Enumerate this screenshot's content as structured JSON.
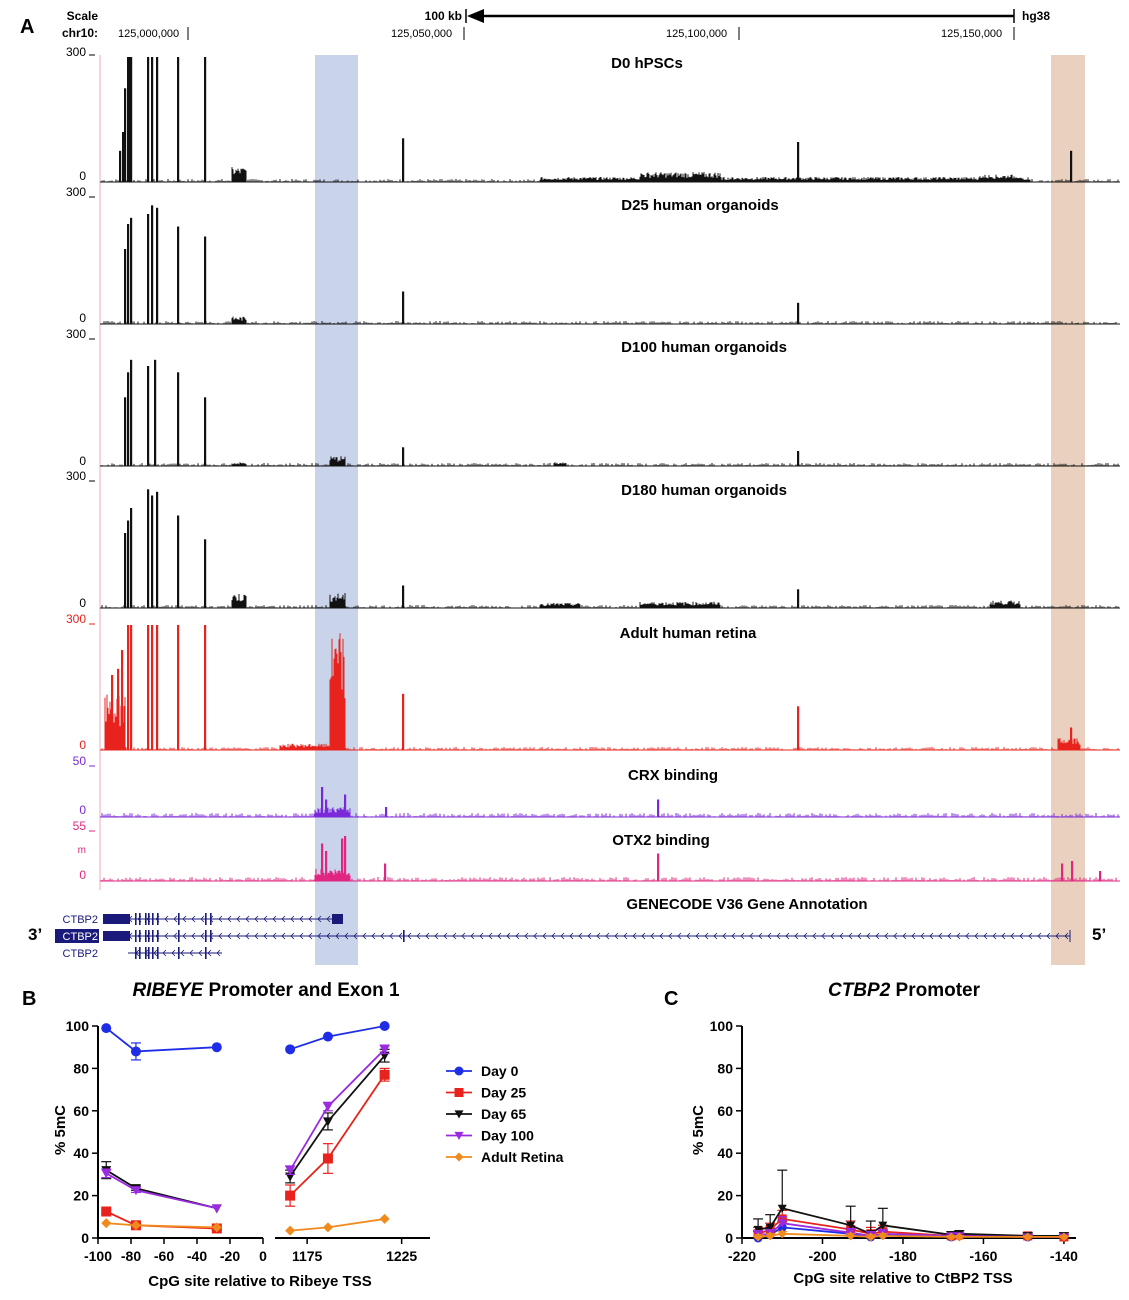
{
  "figure": {
    "panel_labels": {
      "a": "A",
      "b": "B",
      "c": "C"
    },
    "genome_browser": {
      "scale_label": "Scale",
      "chrom_label": "chr10:",
      "scale_bar_label": "100 kb",
      "assembly": "hg38",
      "coordinate_labels": [
        "125,000,000",
        "125,050,000",
        "125,100,000",
        "125,150,000"
      ],
      "tracks": [
        {
          "name": "D0 hPSCs",
          "max_label": "300",
          "min_label": "0",
          "color": "#111111"
        },
        {
          "name": "D25 human organoids",
          "max_label": "300",
          "min_label": "0",
          "color": "#111111"
        },
        {
          "name": "D100 human organoids",
          "max_label": "300",
          "min_label": "0",
          "color": "#111111"
        },
        {
          "name": "D180 human organoids",
          "max_label": "300",
          "min_label": "0",
          "color": "#111111"
        },
        {
          "name": "Adult human retina",
          "max_label": "300",
          "min_label": "0",
          "color": "#e8231d"
        },
        {
          "name": "CRX binding",
          "max_label": "50",
          "min_label": "0",
          "color": "#7a28d8"
        },
        {
          "name": "OTX2 binding",
          "max_label": "55",
          "min_label": "0",
          "color": "#e0267f",
          "extra_label": "m"
        }
      ],
      "gene_track_title": "GENECODE V36 Gene Annotation",
      "gene_labels": [
        "CTBP2",
        "CTBP2",
        "CTBP2"
      ],
      "end_3prime": "3’",
      "end_5prime": "5’",
      "highlight_colors": {
        "ribeye": "#b7c6e4",
        "promoter": "#e3c1aa"
      }
    }
  },
  "chart_data": [
    {
      "type": "line",
      "title_italic": "RIBEYE",
      "title_rest": " Promoter and Exon 1",
      "xlabel": "CpG site relative to Ribeye TSS",
      "ylabel": "% 5mC",
      "ylim": [
        0,
        100
      ],
      "yticks": [
        0,
        20,
        40,
        60,
        80,
        100
      ],
      "xlim_left": [
        -100,
        0
      ],
      "xticks_left": [
        -100,
        -80,
        -60,
        -40,
        -20,
        0
      ],
      "xlim_right": [
        1158,
        1240
      ],
      "xticks_right": [
        1175,
        1225
      ],
      "x_left": [
        -95,
        -77,
        -28
      ],
      "x_right": [
        1166,
        1186,
        1216
      ],
      "series": [
        {
          "name": "Day 0",
          "color": "#1f2ee6",
          "marker": "circle",
          "left": [
            99,
            88,
            90
          ],
          "left_err": [
            0,
            4,
            0
          ],
          "right": [
            89,
            95,
            100
          ],
          "right_err": [
            0,
            0,
            0
          ]
        },
        {
          "name": "Day 25",
          "color": "#e8231d",
          "marker": "square",
          "left": [
            12.5,
            6,
            4.5
          ],
          "left_err": [
            1,
            1,
            0.5
          ],
          "right": [
            20,
            37.5,
            77
          ],
          "right_err": [
            5,
            7,
            3
          ]
        },
        {
          "name": "Day 65",
          "color": "#111111",
          "marker": "triangle-down",
          "left": [
            32,
            23.5,
            14
          ],
          "left_err": [
            4,
            1,
            0
          ],
          "right": [
            29,
            55,
            86
          ],
          "right_err": [
            3,
            4,
            3
          ]
        },
        {
          "name": "Day 100",
          "color": "#9b2be0",
          "marker": "triangle-down",
          "left": [
            30.5,
            22.5,
            14
          ],
          "left_err": [
            2,
            1,
            0
          ],
          "right": [
            32,
            62,
            89
          ],
          "right_err": [
            2,
            2,
            2
          ]
        },
        {
          "name": "Adult Retina",
          "color": "#f08a1c",
          "marker": "diamond",
          "left": [
            7,
            6,
            5
          ],
          "left_err": [
            0,
            0,
            0
          ],
          "right": [
            3.5,
            5,
            9
          ],
          "right_err": [
            0,
            0,
            0
          ]
        }
      ]
    },
    {
      "type": "line",
      "title_italic": "CTBP2",
      "title_rest": " Promoter",
      "xlabel": "CpG site relative to CtBP2 TSS",
      "ylabel": "% 5mC",
      "ylim": [
        0,
        100
      ],
      "yticks": [
        0,
        20,
        40,
        60,
        80,
        100
      ],
      "xlim": [
        -220,
        -137
      ],
      "xticks": [
        -220,
        -200,
        -180,
        -160,
        -140
      ],
      "x": [
        -216,
        -213,
        -210,
        -193,
        -188,
        -185,
        -168,
        -166,
        -149,
        -140
      ],
      "series": [
        {
          "name": "Day 0",
          "color": "#1f2ee6",
          "values": [
            0,
            1.5,
            5,
            2,
            0.5,
            1.5,
            0.5,
            1,
            0.5,
            0.5
          ],
          "err": [
            3,
            3,
            3,
            2,
            2,
            2,
            1,
            1,
            1,
            1
          ]
        },
        {
          "name": "Day 25",
          "color": "#e8231d",
          "values": [
            2,
            4,
            9,
            4,
            2,
            3,
            1,
            1.5,
            1,
            0.5
          ],
          "err": [
            3,
            3,
            4,
            4,
            3,
            3,
            1,
            1,
            1,
            1
          ]
        },
        {
          "name": "Day 65",
          "color": "#111111",
          "values": [
            4,
            5,
            14,
            6,
            2,
            6,
            1.5,
            2,
            1,
            1
          ],
          "err": [
            5,
            6,
            18,
            9,
            6,
            8,
            1.5,
            1.5,
            1.5,
            1.5
          ]
        },
        {
          "name": "Day 100",
          "color": "#9b2be0",
          "values": [
            1.5,
            2,
            7,
            2.5,
            1,
            2,
            1,
            1,
            0.5,
            0.5
          ],
          "err": [
            2,
            2,
            3,
            2,
            2,
            2,
            1,
            1,
            1,
            1
          ]
        },
        {
          "name": "Adult Retina",
          "color": "#f08a1c",
          "values": [
            0.5,
            1,
            2,
            1,
            0.5,
            1,
            0.5,
            0.5,
            0.5,
            0.5
          ],
          "err": [
            1,
            1,
            1,
            1,
            1,
            1,
            0.5,
            0.5,
            0.5,
            0.5
          ]
        }
      ]
    }
  ]
}
